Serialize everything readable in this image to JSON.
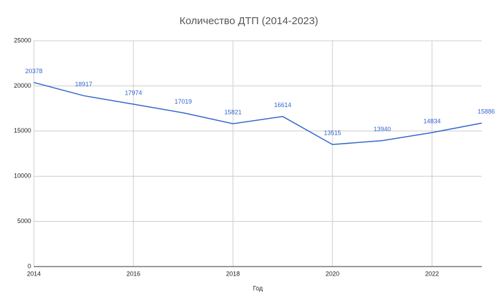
{
  "chart_data": {
    "type": "line",
    "title": "Количество ДТП (2014-2023)",
    "x_label": "Год",
    "x": [
      2014,
      2015,
      2016,
      2017,
      2018,
      2019,
      2020,
      2021,
      2022,
      2023
    ],
    "series": [
      {
        "name": "Количество ДТП",
        "color": "#3366cc",
        "values": [
          20378,
          18917,
          17974,
          17019,
          15821,
          16614,
          13515,
          13940,
          14834,
          15886
        ]
      }
    ],
    "xlim": [
      2014,
      2023
    ],
    "xticks": [
      2014,
      2016,
      2018,
      2020,
      2022
    ],
    "ylim": [
      0,
      25000
    ],
    "yticks": [
      0,
      5000,
      10000,
      15000,
      20000,
      25000
    ],
    "grid": true,
    "data_labels": true
  }
}
